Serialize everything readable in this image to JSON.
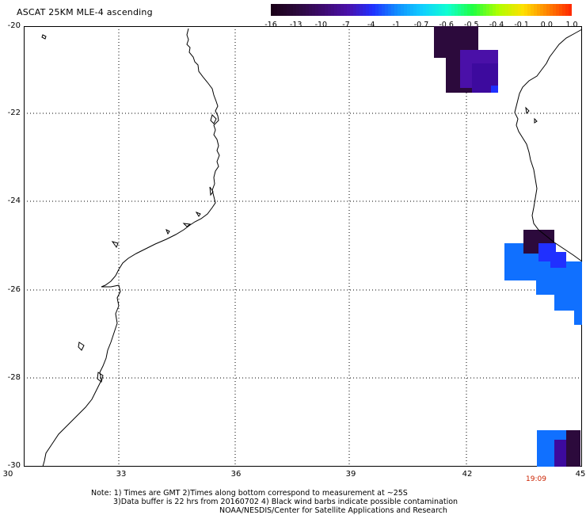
{
  "title": "ASCAT 25KM MLE-4 ascending",
  "colorbar": {
    "labels": [
      "-16",
      "-13",
      "-10",
      "-7",
      "-4",
      "-1",
      "-0.7",
      "-0.6",
      "-0.5",
      "-0.4",
      "-0.1",
      "0.0",
      "1.0"
    ],
    "colors": [
      "#1a0018",
      "#2c0a3c",
      "#3d0a6e",
      "#4a10a8",
      "#2030ff",
      "#1090ff",
      "#10d0ff",
      "#10ffd0",
      "#20ff40",
      "#b0ff00",
      "#ffe000",
      "#ff8000",
      "#ff2000"
    ]
  },
  "map": {
    "lat_labels": [
      "-20",
      "-22",
      "-24",
      "-26",
      "-28",
      "-30"
    ],
    "lon_labels": [
      "30",
      "33",
      "36",
      "39",
      "42",
      "45"
    ],
    "timestamp": "19:09"
  },
  "footer": {
    "line1": "Note: 1) Times are GMT 2)Times along bottom correspond to measurement at ~25S",
    "line2": "3)Data buffer is 22 hrs from 20160702 4) Black wind barbs indicate possible contamination",
    "line3": "NOAA/NESDIS/Center for Satellite Applications and Research"
  }
}
